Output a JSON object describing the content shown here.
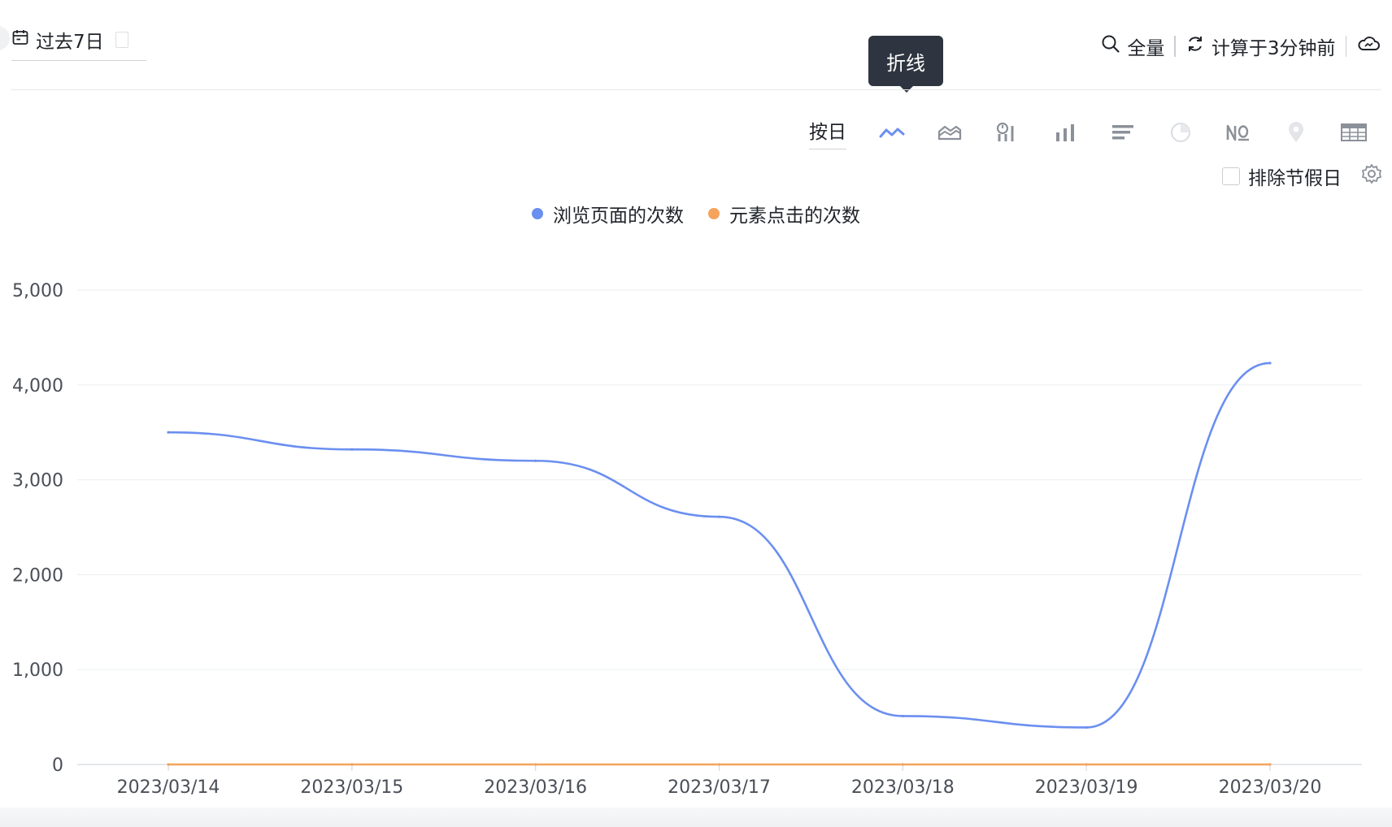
{
  "header": {
    "date_range_label": "过去7日",
    "full_label": "全量",
    "computed_label": "计算于3分钟前"
  },
  "tooltip": {
    "text": "折线"
  },
  "toolbar": {
    "granularity_label": "按日",
    "icons": [
      "line-chart-icon",
      "area-chart-icon",
      "funnel-retention-icon",
      "bar-chart-icon",
      "horizontal-bar-icon",
      "pie-chart-icon",
      "number-icon",
      "map-pin-icon",
      "table-icon"
    ],
    "active_icon": "line-chart-icon"
  },
  "options": {
    "exclude_holidays_label": "排除节假日",
    "exclude_holidays_checked": false
  },
  "colors": {
    "accent": "#6b8ff0",
    "series_1": "#6b8ff0",
    "series_2": "#f5a35c",
    "icon_gray": "#8b9099",
    "disabled": "#d9dce1"
  },
  "chart_data": {
    "type": "line",
    "x": [
      "2023/03/14",
      "2023/03/15",
      "2023/03/16",
      "2023/03/17",
      "2023/03/18",
      "2023/03/19",
      "2023/03/20"
    ],
    "series": [
      {
        "name": "浏览页面的次数",
        "values": [
          3500,
          3320,
          3200,
          2610,
          510,
          390,
          4230
        ]
      },
      {
        "name": "元素点击的次数",
        "values": [
          0,
          0,
          0,
          0,
          0,
          0,
          0
        ]
      }
    ],
    "y_ticks": [
      "0",
      "1,000",
      "2,000",
      "3,000",
      "4,000",
      "5,000"
    ],
    "ylim": [
      0,
      5000
    ],
    "grid": true,
    "legend_position": "top-center",
    "smooth": true
  }
}
